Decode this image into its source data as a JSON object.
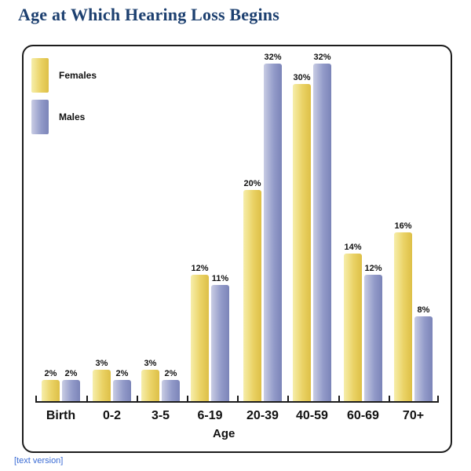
{
  "title": "Age at Which Hearing Loss Begins",
  "footer": {
    "text_version_label": "[text version]"
  },
  "colors": {
    "title_text": "#1d4070",
    "females_bar": "#ead264",
    "males_bar": "#939bc9",
    "link_blue": "#3a6bd4",
    "axis_black": "#1c1c1c"
  },
  "chart_data": {
    "type": "bar",
    "title": "Age at Which Hearing Loss Begins",
    "categories": [
      "Birth",
      "0-2",
      "3-5",
      "6-19",
      "20-39",
      "40-59",
      "60-69",
      "70+"
    ],
    "series": [
      {
        "name": "Females",
        "color": "#ead264",
        "values": [
          2,
          3,
          3,
          12,
          20,
          30,
          14,
          16
        ]
      },
      {
        "name": "Males",
        "color": "#939bc9",
        "values": [
          2,
          2,
          2,
          11,
          32,
          32,
          12,
          8
        ]
      }
    ],
    "value_suffix": "%",
    "data_labels": true,
    "xlabel": "Age",
    "ylabel": "",
    "ylim": [
      0,
      32
    ],
    "grid": false,
    "legend_position": "top-left"
  }
}
